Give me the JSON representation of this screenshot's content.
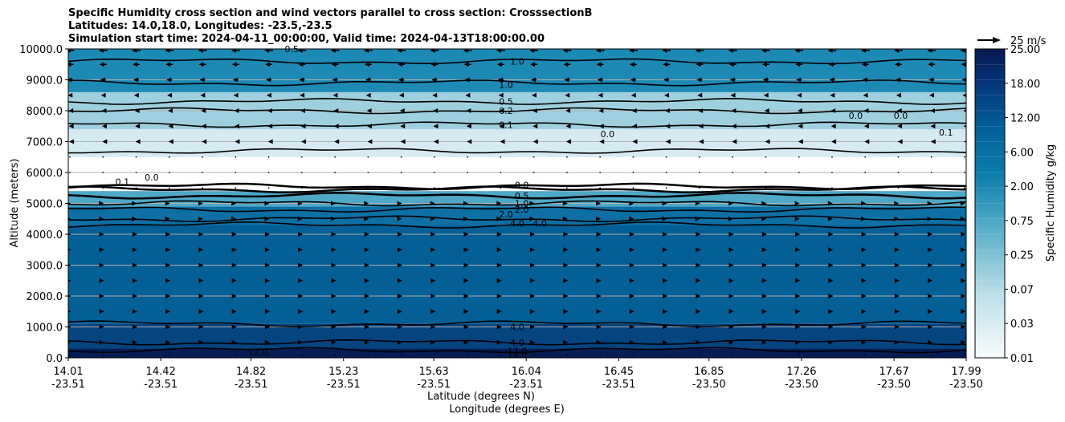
{
  "title": {
    "line1": "Specific Humidity cross section and wind vectors parallel to cross section: CrosssectionB",
    "line2": "Latitudes: 14.0,18.0, Longitudes: -23.5,-23.5",
    "line3": "Simulation start time: 2024-04-11_00:00:00, Valid time: 2024-04-13T18:00:00.00"
  },
  "chart_data": {
    "type": "heatmap",
    "title": "Specific Humidity cross section and wind vectors parallel to cross section: CrosssectionB",
    "ylabel": "Altitude (meters)",
    "xlabel_line1": "Latitude (degrees N)",
    "xlabel_line2": "Longitude (degrees E)",
    "ylim": [
      0,
      10000
    ],
    "y_ticks": [
      "0.0",
      "1000.0",
      "2000.0",
      "3000.0",
      "4000.0",
      "5000.0",
      "6000.0",
      "7000.0",
      "8000.0",
      "9000.0",
      "10000.0"
    ],
    "x_ticks": [
      {
        "lat": "14.01",
        "lon": "-23.51"
      },
      {
        "lat": "14.42",
        "lon": "-23.51"
      },
      {
        "lat": "14.82",
        "lon": "-23.51"
      },
      {
        "lat": "15.23",
        "lon": "-23.51"
      },
      {
        "lat": "15.63",
        "lon": "-23.51"
      },
      {
        "lat": "16.04",
        "lon": "-23.51"
      },
      {
        "lat": "16.45",
        "lon": "-23.51"
      },
      {
        "lat": "16.85",
        "lon": "-23.50"
      },
      {
        "lat": "17.26",
        "lon": "-23.50"
      },
      {
        "lat": "17.67",
        "lon": "-23.50"
      },
      {
        "lat": "17.99",
        "lon": "-23.50"
      }
    ],
    "colorbar": {
      "label": "Specific Humidity g/kg",
      "tick_labels": [
        "0.01",
        "0.03",
        "0.07",
        "0.25",
        "0.75",
        "2.00",
        "6.00",
        "12.00",
        "18.00",
        "25.00"
      ],
      "levels": 20
    },
    "quiver_key": "25 m/s",
    "humidity_layers": [
      {
        "alt_bottom": 0,
        "alt_top": 300,
        "q": 18.0
      },
      {
        "alt_bottom": 300,
        "alt_top": 1100,
        "q": 12.0
      },
      {
        "alt_bottom": 1100,
        "alt_top": 4300,
        "q": 6.0
      },
      {
        "alt_bottom": 4300,
        "alt_top": 4900,
        "q": 4.0
      },
      {
        "alt_bottom": 4900,
        "alt_top": 5400,
        "q": 1.0
      },
      {
        "alt_bottom": 5400,
        "alt_top": 6500,
        "q": 0.0
      },
      {
        "alt_bottom": 6500,
        "alt_top": 7400,
        "q": 0.1
      },
      {
        "alt_bottom": 7400,
        "alt_top": 8600,
        "q": 0.5
      },
      {
        "alt_bottom": 8600,
        "alt_top": 10000,
        "q": 1.5
      }
    ],
    "contour_labels": [
      {
        "text": "0.5",
        "lat": 15.0,
        "alt": 10000
      },
      {
        "text": "1.0",
        "lat": 16.0,
        "alt": 9600
      },
      {
        "text": "1.0",
        "lat": 15.95,
        "alt": 8850
      },
      {
        "text": "0.5",
        "lat": 15.95,
        "alt": 8300
      },
      {
        "text": "0.2",
        "lat": 15.95,
        "alt": 8000
      },
      {
        "text": "0.1",
        "lat": 15.95,
        "alt": 7550
      },
      {
        "text": "0.0",
        "lat": 16.4,
        "alt": 7250
      },
      {
        "text": "0.0",
        "lat": 17.5,
        "alt": 7850
      },
      {
        "text": "0.0",
        "lat": 17.7,
        "alt": 7850
      },
      {
        "text": "0.1",
        "lat": 17.9,
        "alt": 7300
      },
      {
        "text": "0.1",
        "lat": 14.25,
        "alt": 5700
      },
      {
        "text": "0.0",
        "lat": 14.38,
        "alt": 5850
      },
      {
        "text": "0.0",
        "lat": 16.02,
        "alt": 5600
      },
      {
        "text": "0.5",
        "lat": 16.02,
        "alt": 5250
      },
      {
        "text": "1.0",
        "lat": 16.02,
        "alt": 5000
      },
      {
        "text": "2.0",
        "lat": 16.02,
        "alt": 4800
      },
      {
        "text": "2.0",
        "lat": 15.95,
        "alt": 4650
      },
      {
        "text": "4.0",
        "lat": 16.0,
        "alt": 4350
      },
      {
        "text": "4.0",
        "lat": 16.1,
        "alt": 4350
      },
      {
        "text": "4.0",
        "lat": 16.0,
        "alt": 1000
      },
      {
        "text": "4.0",
        "lat": 16.0,
        "alt": 500
      },
      {
        "text": "12.0",
        "lat": 14.85,
        "alt": 200
      },
      {
        "text": "12.0",
        "lat": 16.0,
        "alt": 220
      },
      {
        "text": "18.0",
        "lat": 16.0,
        "alt": 100
      }
    ],
    "wind_rows": [
      {
        "alt": 9950,
        "u": -12
      },
      {
        "alt": 9500,
        "u": -10
      },
      {
        "alt": 9000,
        "u": -8
      },
      {
        "alt": 8500,
        "u": -6
      },
      {
        "alt": 8000,
        "u": -4
      },
      {
        "alt": 7500,
        "u": -3
      },
      {
        "alt": 7000,
        "u": -2
      },
      {
        "alt": 6500,
        "u": -1
      },
      {
        "alt": 6000,
        "u": -1
      },
      {
        "alt": 5500,
        "u": -1
      },
      {
        "alt": 5000,
        "u": 2
      },
      {
        "alt": 4500,
        "u": 2
      },
      {
        "alt": 4000,
        "u": 3
      },
      {
        "alt": 3500,
        "u": 3
      },
      {
        "alt": 3000,
        "u": 3
      },
      {
        "alt": 2500,
        "u": 3
      },
      {
        "alt": 2000,
        "u": 3
      },
      {
        "alt": 1500,
        "u": 3
      },
      {
        "alt": 1000,
        "u": 3
      },
      {
        "alt": 500,
        "u": 3
      },
      {
        "alt": 100,
        "u": 1
      }
    ],
    "wind_columns": 28
  }
}
